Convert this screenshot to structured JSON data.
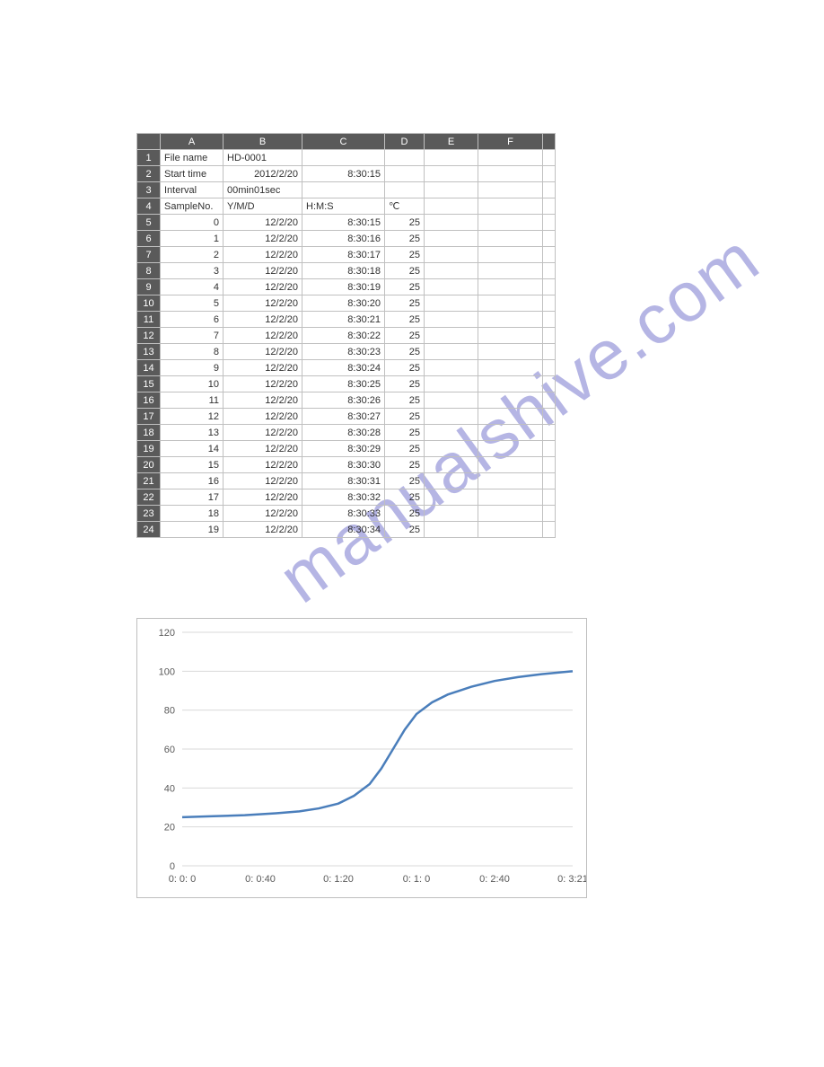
{
  "watermark": "manualshive.com",
  "spreadsheet": {
    "colHeaders": [
      "A",
      "B",
      "C",
      "D",
      "E",
      "F",
      ""
    ],
    "rowHeaders": [
      "1",
      "2",
      "3",
      "4",
      "5",
      "6",
      "7",
      "8",
      "9",
      "10",
      "11",
      "12",
      "13",
      "14",
      "15",
      "16",
      "17",
      "18",
      "19",
      "20",
      "21",
      "22",
      "23",
      "24"
    ],
    "meta": {
      "fileNameLabel": "File name",
      "fileName": "HD-0001",
      "startTimeLabel": "Start time",
      "startDate": "2012/2/20",
      "startClock": "8:30:15",
      "intervalLabel": "Interval",
      "intervalValue": "00min01sec",
      "sampleLabel": "SampleNo.",
      "ymdLabel": "Y/M/D",
      "hmsLabel": "H:M:S",
      "tempLabel": "℃"
    },
    "dataRows": [
      {
        "n": "0",
        "d": "12/2/20",
        "t": "8:30:15",
        "v": "25"
      },
      {
        "n": "1",
        "d": "12/2/20",
        "t": "8:30:16",
        "v": "25"
      },
      {
        "n": "2",
        "d": "12/2/20",
        "t": "8:30:17",
        "v": "25"
      },
      {
        "n": "3",
        "d": "12/2/20",
        "t": "8:30:18",
        "v": "25"
      },
      {
        "n": "4",
        "d": "12/2/20",
        "t": "8:30:19",
        "v": "25"
      },
      {
        "n": "5",
        "d": "12/2/20",
        "t": "8:30:20",
        "v": "25"
      },
      {
        "n": "6",
        "d": "12/2/20",
        "t": "8:30:21",
        "v": "25"
      },
      {
        "n": "7",
        "d": "12/2/20",
        "t": "8:30:22",
        "v": "25"
      },
      {
        "n": "8",
        "d": "12/2/20",
        "t": "8:30:23",
        "v": "25"
      },
      {
        "n": "9",
        "d": "12/2/20",
        "t": "8:30:24",
        "v": "25"
      },
      {
        "n": "10",
        "d": "12/2/20",
        "t": "8:30:25",
        "v": "25"
      },
      {
        "n": "11",
        "d": "12/2/20",
        "t": "8:30:26",
        "v": "25"
      },
      {
        "n": "12",
        "d": "12/2/20",
        "t": "8:30:27",
        "v": "25"
      },
      {
        "n": "13",
        "d": "12/2/20",
        "t": "8:30:28",
        "v": "25"
      },
      {
        "n": "14",
        "d": "12/2/20",
        "t": "8:30:29",
        "v": "25"
      },
      {
        "n": "15",
        "d": "12/2/20",
        "t": "8:30:30",
        "v": "25"
      },
      {
        "n": "16",
        "d": "12/2/20",
        "t": "8:30:31",
        "v": "25"
      },
      {
        "n": "17",
        "d": "12/2/20",
        "t": "8:30:32",
        "v": "25"
      },
      {
        "n": "18",
        "d": "12/2/20",
        "t": "8:30:33",
        "v": "25"
      },
      {
        "n": "19",
        "d": "12/2/20",
        "t": "8:30:34",
        "v": "25"
      }
    ]
  },
  "chart": {
    "type": "line",
    "ylim": [
      0,
      120
    ],
    "ytick_step": 20,
    "yticks": [
      "0",
      "20",
      "40",
      "60",
      "80",
      "100",
      "120"
    ],
    "xticks": [
      "0: 0: 0",
      "0: 0:40",
      "0: 1:20",
      "0: 1: 0",
      "0: 2:40",
      "0: 3:21"
    ],
    "line_color": "#4a7ebb",
    "grid_color": "#d9d9d9",
    "text_color": "#595959",
    "border_color": "#bfbfbf",
    "background_color": "#ffffff",
    "line_width": 2.5,
    "points": [
      {
        "x": 0.0,
        "y": 25
      },
      {
        "x": 0.08,
        "y": 25.5
      },
      {
        "x": 0.16,
        "y": 26
      },
      {
        "x": 0.24,
        "y": 27
      },
      {
        "x": 0.3,
        "y": 28
      },
      {
        "x": 0.35,
        "y": 29.5
      },
      {
        "x": 0.4,
        "y": 32
      },
      {
        "x": 0.44,
        "y": 36
      },
      {
        "x": 0.48,
        "y": 42
      },
      {
        "x": 0.51,
        "y": 50
      },
      {
        "x": 0.54,
        "y": 60
      },
      {
        "x": 0.57,
        "y": 70
      },
      {
        "x": 0.6,
        "y": 78
      },
      {
        "x": 0.64,
        "y": 84
      },
      {
        "x": 0.68,
        "y": 88
      },
      {
        "x": 0.74,
        "y": 92
      },
      {
        "x": 0.8,
        "y": 95
      },
      {
        "x": 0.86,
        "y": 97
      },
      {
        "x": 0.92,
        "y": 98.5
      },
      {
        "x": 1.0,
        "y": 100
      }
    ]
  }
}
